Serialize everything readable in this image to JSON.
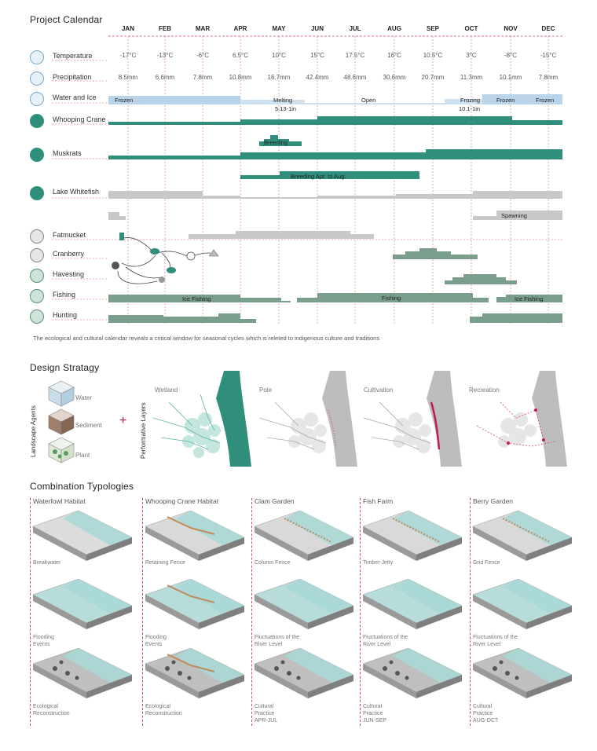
{
  "calendar": {
    "title": "Project Calendar",
    "months": [
      "JAN",
      "FEB",
      "MAR",
      "APR",
      "MAY",
      "JUN",
      "JUL",
      "AUG",
      "SEP",
      "OCT",
      "NOV",
      "DEC"
    ],
    "temperature": {
      "label": "Temperature",
      "values": [
        "-17°C",
        "-13°C",
        "-6°C",
        "6.5°C",
        "10°C",
        "15°C",
        "17.5°C",
        "16°C",
        "10.5°C",
        "3°C",
        "-8°C",
        "-15°C"
      ]
    },
    "precipitation": {
      "label": "Precipitation",
      "values": [
        "8.5mm",
        "6.6mm",
        "7.8mm",
        "10.8mm",
        "16.7mm",
        "42.4mm",
        "48.6mm",
        "30.6mm",
        "20.7mm",
        "11.3mm",
        "10.1mm",
        "7.8mm"
      ]
    },
    "water_ice": {
      "label": "Water and Ice",
      "frozen": "Frozen",
      "melting": "Melting",
      "melting_date": "5.13-1in",
      "open": "Open",
      "frozing": "Frozing",
      "frozing_date": "10.1-1in",
      "frozen_nov": "Frozen",
      "frozen_dec": "Frozen"
    },
    "whooping_crane": {
      "label": "Whooping Crane",
      "breeding": "Breeding"
    },
    "muskrats": {
      "label": "Muskrats",
      "breeding": "Breeding Apr. to Aug."
    },
    "lake_whitefish": {
      "label": "Lake Whitefish",
      "spawning": "Spawning"
    },
    "fatmucket": {
      "label": "Fatmucket"
    },
    "cranberry": {
      "label": "Cranberry"
    },
    "havesting": {
      "label": "Havesting"
    },
    "fishing": {
      "label": "Fishing",
      "ice_fishing_1": "Ice Fishing",
      "fishing": "Fishing",
      "ice_fishing_2": "Ice Fishing"
    },
    "hunting": {
      "label": "Hunting"
    },
    "caption": "The ecological and cultural calendar reveals a critical window for seasonal cycles which is releted to indigenous culture and traditions",
    "colors": {
      "water": "#b9d3e8",
      "teal": "#2f8f7c",
      "grey": "#c8c8c8",
      "sage": "#7a9e8c",
      "dark_grey": "#9a9a9a",
      "red_line": "#d44a6b"
    }
  },
  "strategy": {
    "title": "Design Stratagy",
    "agents_label": "Landscape Agents",
    "agents": [
      "Water",
      "Sediment",
      "Plant"
    ],
    "plus": "+",
    "layers_label": "Performative Layers",
    "layers": [
      "Wetland",
      "Pole",
      "Cultivation",
      "Recreation"
    ]
  },
  "typologies": {
    "title": "Combination Typologies",
    "columns": [
      {
        "title": "Waterfowl Habitat",
        "labels": [
          "Breakwater",
          "Flooding\nEvents",
          "Ecological\nReconstruction"
        ]
      },
      {
        "title": "Whooping Crane Habitat",
        "labels": [
          "Retaining Fence",
          "Flooding\nEvents",
          "Ecological\nReconstruction"
        ]
      },
      {
        "title": "Clam Garden",
        "labels": [
          "Column Fence",
          "Fluctuations of the\nRiver Level",
          "Cultural\nPractice\nAPR-JUL"
        ]
      },
      {
        "title": "Fish Farm",
        "labels": [
          "Timber Jetty",
          "Fluctuations of the\nRiver Level",
          "Cultural\nPractice\nJUN-SEP"
        ]
      },
      {
        "title": "Berry Garden",
        "labels": [
          "Grid Fence",
          "Fluctuations of the\nRiver Level",
          "Cultural\nPractice\nAUG-OCT"
        ]
      }
    ]
  }
}
